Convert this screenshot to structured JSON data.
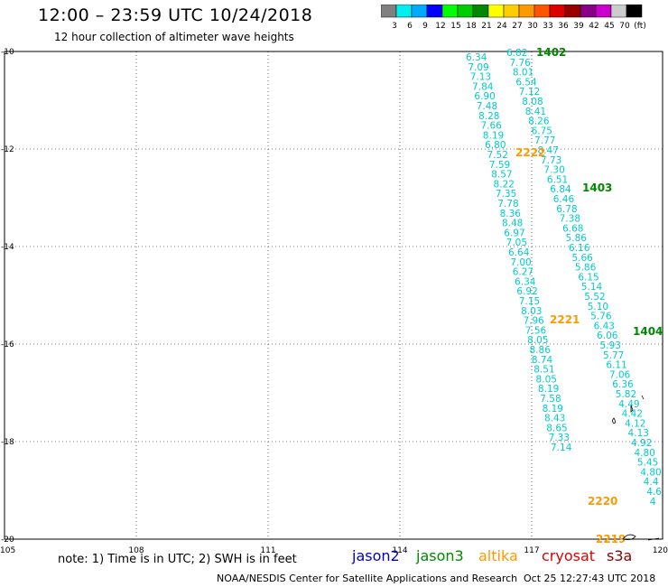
{
  "title": "12:00 – 23:59 UTC 10/24/2018",
  "subtitle": "12 hour collection of altimeter wave heights",
  "colorbar": {
    "colors": [
      "#808080",
      "#00eeee",
      "#00aaff",
      "#0000ff",
      "#00ff00",
      "#00cc00",
      "#008800",
      "#ffff00",
      "#ffcc00",
      "#ff9900",
      "#ff5500",
      "#dd0000",
      "#990000",
      "#880088",
      "#cc00cc",
      "#cccccc",
      "#000000"
    ],
    "labels": [
      "3",
      "6",
      "9",
      "12",
      "15",
      "18",
      "21",
      "24",
      "27",
      "30",
      "33",
      "36",
      "39",
      "42",
      "45",
      "70",
      "(ft)"
    ]
  },
  "axes": {
    "lat_labels": [
      "-10",
      "-12",
      "-14",
      "-16",
      "-18",
      "-20"
    ],
    "lon_labels": [
      "105",
      "108",
      "111",
      "114",
      "117",
      "120"
    ]
  },
  "track_colors": {
    "cyan": "#00cccc",
    "time_orange": "#ff9900",
    "time_green": "#008800"
  },
  "tracks": [
    {
      "values": [
        "6.34",
        "7.09",
        "7.13",
        "7.84",
        "6.90",
        "7.48",
        "8.28",
        "7.66",
        "8.19",
        "6.80",
        "7.52",
        "7.59",
        "8.57",
        "8.22",
        "7.35",
        "7.78",
        "8.36",
        "8.48",
        "6.97",
        "7.05",
        "6.64",
        "7.00",
        "6.27",
        "6.34",
        "6.92",
        "7.15",
        "8.03",
        "7.96",
        "7.56",
        "8.05",
        "8.86",
        "8.74",
        "8.51",
        "8.05",
        "8.19",
        "7.58",
        "8.19",
        "8.43",
        "8.65",
        "7.33",
        "7.14"
      ]
    },
    {
      "values": [
        "6.82",
        "7.76",
        "8.01",
        "6.54",
        "7.12",
        "8.08",
        "8.41",
        "8.26",
        "6.75",
        "7.77",
        "8.47",
        "7.73",
        "7.30",
        "6.51",
        "6.84",
        "6.46",
        "6.78",
        "7.38",
        "6.68",
        "5.86",
        "6.16",
        "5.66",
        "5.86",
        "6.15",
        "5.14",
        "5.52",
        "5.10",
        "5.76",
        "6.43",
        "6.06",
        "5.93",
        "5.77",
        "6.11",
        "7.06",
        "6.36",
        "5.82",
        "4.49",
        "4.42",
        "4.12",
        "4.13",
        "4.92",
        "4.80",
        "5.45",
        "4.80",
        "4.4",
        "4.6",
        "4"
      ]
    }
  ],
  "time_labels": [
    {
      "text": "1402",
      "color": "green"
    },
    {
      "text": "2222",
      "color": "orange"
    },
    {
      "text": "1403",
      "color": "green"
    },
    {
      "text": "2221",
      "color": "orange"
    },
    {
      "text": "1404",
      "color": "green"
    },
    {
      "text": "2220",
      "color": "orange"
    },
    {
      "text": "2219",
      "color": "orange"
    }
  ],
  "note": "note: 1) Time is in UTC; 2) SWH is in feet",
  "satellites": [
    {
      "name": "jason2",
      "color": "#0000cc"
    },
    {
      "name": "jason3",
      "color": "#008800"
    },
    {
      "name": "altika",
      "color": "#ff9900"
    },
    {
      "name": "cryosat",
      "color": "#dd0000"
    },
    {
      "name": "s3a",
      "color": "#880000"
    }
  ],
  "credit": "NOAA/NESDIS Center for Satellite Applications and Research",
  "timestamp": "Oct 25 12:27:43 UTC 2018"
}
